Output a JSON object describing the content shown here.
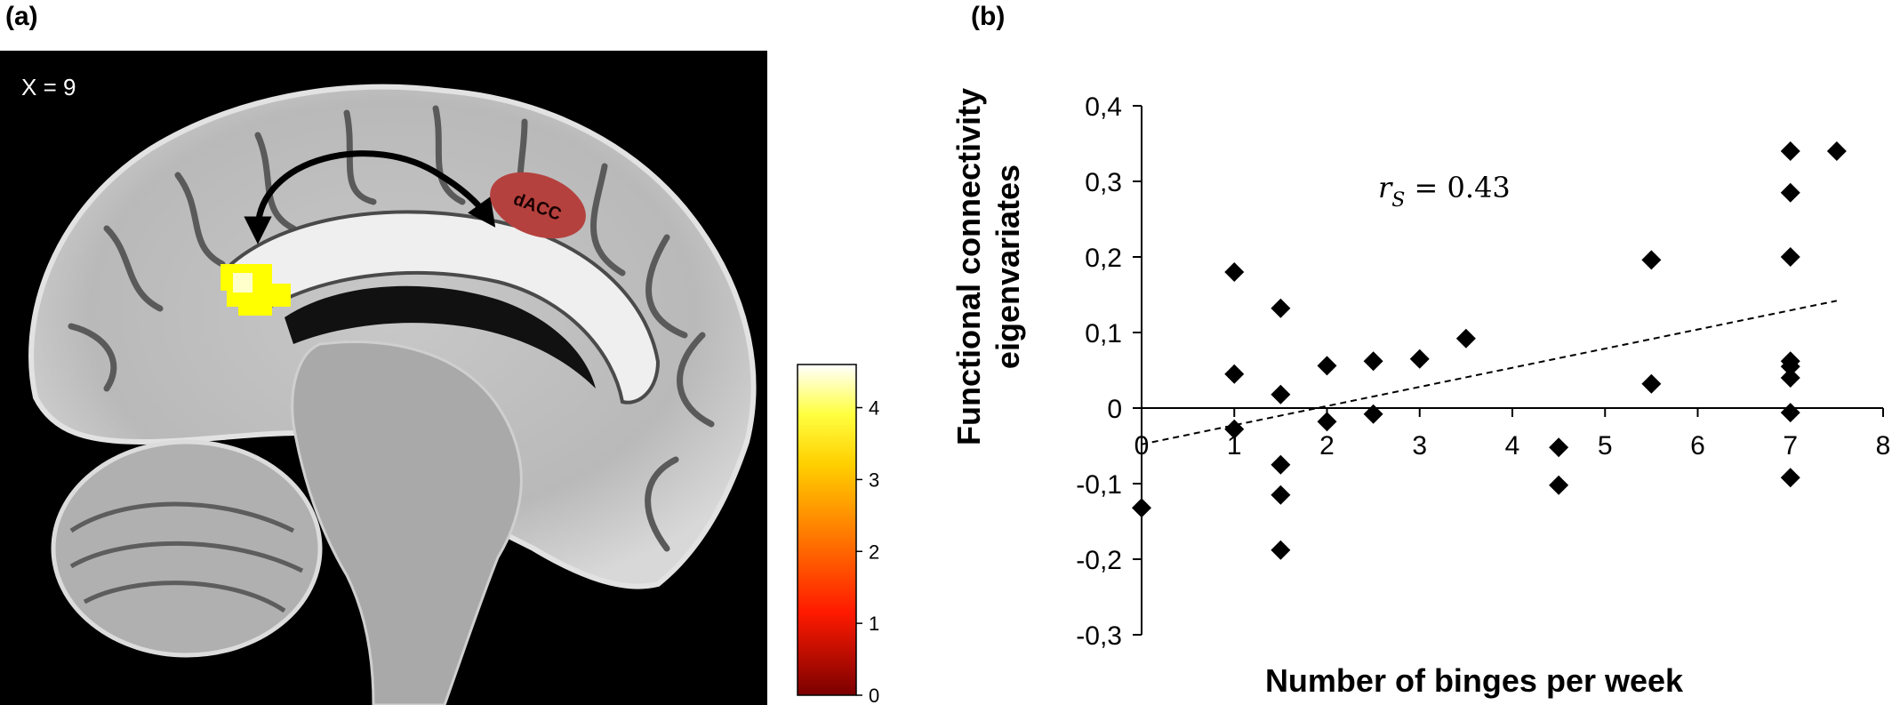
{
  "panel_a": {
    "label": "(a)",
    "slice_label": "X = 9",
    "region_label": "dACC",
    "colorbar": {
      "ticks": [
        "4",
        "3",
        "2",
        "1",
        "0"
      ],
      "min": 0,
      "max": 4.6,
      "colors": [
        "#7a0000",
        "#ff1a00",
        "#ff8000",
        "#ffd000",
        "#ffff40",
        "#ffffff"
      ]
    }
  },
  "panel_b": {
    "label": "(b)",
    "annotation": {
      "r": "r",
      "sub": "S",
      "rest": " = 0.43"
    }
  },
  "chart_data": {
    "type": "scatter",
    "title": "",
    "xlabel": "Number of binges per week",
    "ylabel_lines": [
      "Functional connectivity",
      "eigenvariates"
    ],
    "xlim": [
      0,
      8
    ],
    "ylim": [
      -0.3,
      0.4
    ],
    "x_ticks": [
      0,
      1,
      2,
      3,
      4,
      5,
      6,
      7,
      8
    ],
    "x_tick_labels": [
      "0",
      "1",
      "2",
      "3",
      "4",
      "5",
      "6",
      "7",
      "8"
    ],
    "y_ticks": [
      0.4,
      0.3,
      0.2,
      0.1,
      0,
      -0.1,
      -0.2,
      -0.3
    ],
    "y_tick_labels": [
      "0,4",
      "0,3",
      "0,2",
      "0,1",
      "0",
      "-0,1",
      "-0,2",
      "-0,3"
    ],
    "marker": "diamond",
    "points": [
      [
        0,
        -0.132
      ],
      [
        1,
        0.18
      ],
      [
        1,
        0.045
      ],
      [
        1,
        -0.028
      ],
      [
        1.5,
        0.132
      ],
      [
        1.5,
        0.018
      ],
      [
        1.5,
        -0.075
      ],
      [
        1.5,
        -0.115
      ],
      [
        1.5,
        -0.188
      ],
      [
        2,
        0.056
      ],
      [
        2,
        -0.018
      ],
      [
        2.5,
        0.062
      ],
      [
        2.5,
        -0.008
      ],
      [
        3,
        0.065
      ],
      [
        3.5,
        0.092
      ],
      [
        4.5,
        -0.052
      ],
      [
        4.5,
        -0.102
      ],
      [
        5.5,
        0.196
      ],
      [
        5.5,
        0.032
      ],
      [
        7,
        0.34
      ],
      [
        7,
        0.285
      ],
      [
        7,
        0.2
      ],
      [
        7,
        0.062
      ],
      [
        7,
        0.055
      ],
      [
        7,
        0.04
      ],
      [
        7,
        -0.006
      ],
      [
        7,
        -0.092
      ],
      [
        7.5,
        0.34
      ]
    ],
    "trendline": {
      "style": "dashed",
      "x": [
        0,
        7.5
      ],
      "y": [
        -0.048,
        0.142
      ]
    }
  }
}
